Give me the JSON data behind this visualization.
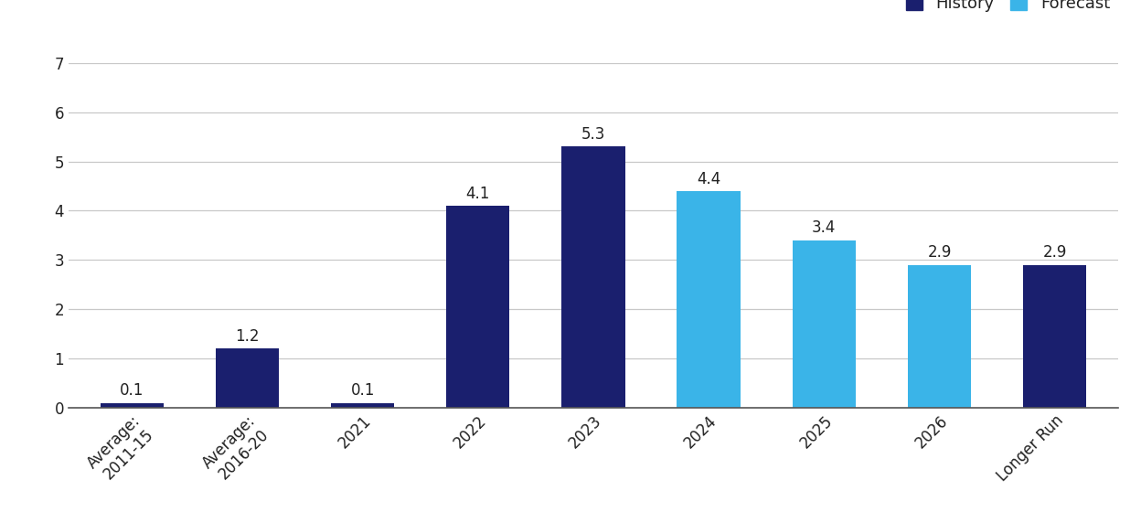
{
  "categories": [
    "Average:\n2011-15",
    "Average:\n2016-20",
    "2021",
    "2022",
    "2023",
    "2024",
    "2025",
    "2026",
    "Longer Run"
  ],
  "values": [
    0.1,
    1.2,
    0.1,
    4.1,
    5.3,
    4.4,
    3.4,
    2.9,
    2.9
  ],
  "bar_colors": [
    "#1a1f6e",
    "#1a1f6e",
    "#1a1f6e",
    "#1a1f6e",
    "#1a1f6e",
    "#3ab4e8",
    "#3ab4e8",
    "#3ab4e8",
    "#1a1f6e"
  ],
  "history_color": "#1a1f6e",
  "forecast_color": "#3ab4e8",
  "legend_labels": [
    "History",
    "Forecast"
  ],
  "ylim": [
    0,
    7
  ],
  "yticks": [
    0,
    1,
    2,
    3,
    4,
    5,
    6,
    7
  ],
  "ytick_labels": [
    "0",
    "1",
    "2",
    "3",
    "4",
    "5",
    "6",
    "7"
  ],
  "bar_width": 0.55,
  "value_labels": [
    "0.1",
    "1.2",
    "0.1",
    "4.1",
    "5.3",
    "4.4",
    "3.4",
    "2.9",
    "2.9"
  ],
  "background_color": "#ffffff",
  "grid_color": "#c8c8c8",
  "tick_fontsize": 12,
  "legend_fontsize": 13,
  "value_fontsize": 12
}
